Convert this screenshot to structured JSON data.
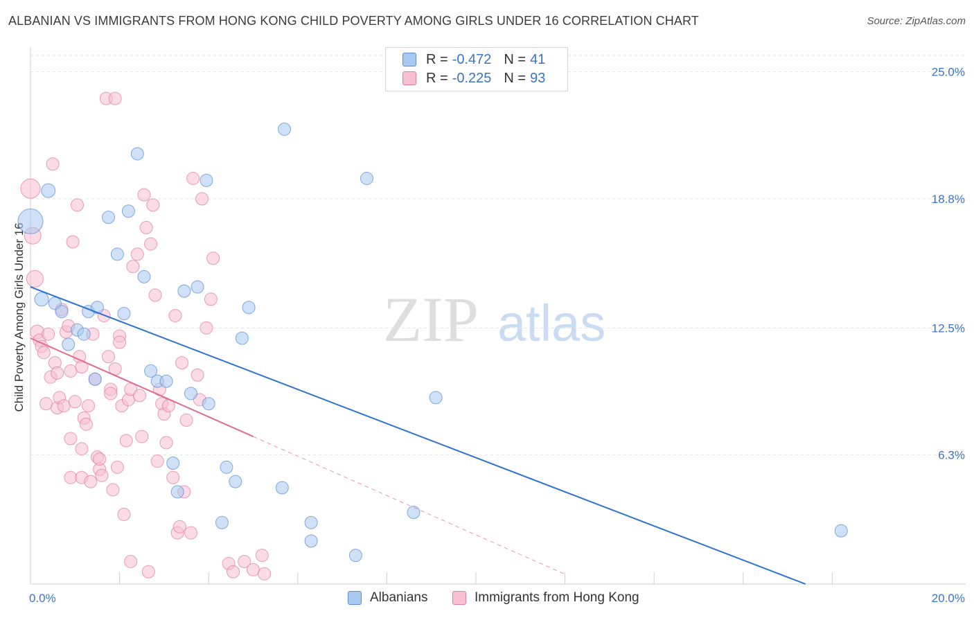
{
  "title": "ALBANIAN VS IMMIGRANTS FROM HONG KONG CHILD POVERTY AMONG GIRLS UNDER 16 CORRELATION CHART",
  "source": "Source: ZipAtlas.com",
  "watermark": {
    "zip": "ZIP",
    "atlas": "atlas"
  },
  "stats": [
    {
      "r_label": "R =",
      "r_value": "-0.472",
      "n_label": "N =",
      "n_value": "41",
      "color": "#a9c8f0",
      "border": "#5b8fd6"
    },
    {
      "r_label": "R =",
      "r_value": "-0.225",
      "n_label": "N =",
      "n_value": "93",
      "color": "#f7c0d2",
      "border": "#e27da0"
    }
  ],
  "legend": [
    "Albanians",
    "Immigrants from Hong Kong"
  ],
  "colors": {
    "albanian_fill": "#a9c8f0",
    "albanian_stroke": "#5b8fd6",
    "albanian_line": "#2f72d0",
    "hk_fill": "#f7c0d2",
    "hk_stroke": "#e27da0",
    "hk_line": "#e06a92",
    "tick_text": "#3a74c8",
    "grid": "#e3e3e3"
  },
  "chart_data": {
    "type": "scatter",
    "title": "ALBANIAN VS IMMIGRANTS FROM HONG KONG CHILD POVERTY AMONG GIRLS UNDER 16 CORRELATION CHART",
    "xlabel": "",
    "ylabel": "Child Poverty Among Girls Under 16",
    "xlim": [
      0,
      20
    ],
    "ylim": [
      0,
      25.8
    ],
    "x_tick_labels": [
      {
        "value": 0,
        "label": "0.0%"
      },
      {
        "value": 20,
        "label": "20.0%"
      }
    ],
    "y_ticks": [
      {
        "value": 6.3,
        "label": "6.3%"
      },
      {
        "value": 12.5,
        "label": "12.5%"
      },
      {
        "value": 18.8,
        "label": "18.8%"
      },
      {
        "value": 25.0,
        "label": "25.0%"
      }
    ],
    "x_minor_ticks": [
      2,
      4,
      6,
      8,
      10,
      12,
      14,
      16,
      18
    ],
    "grid": true,
    "legend_position": "bottom",
    "series": [
      {
        "name": "Albanians",
        "points": [
          [
            0.0,
            17.7,
            18
          ],
          [
            0.4,
            19.2,
            10
          ],
          [
            0.25,
            13.9,
            10
          ],
          [
            0.55,
            13.7,
            9
          ],
          [
            0.7,
            13.3,
            9
          ],
          [
            0.85,
            11.7,
            9
          ],
          [
            1.05,
            12.4,
            9
          ],
          [
            1.2,
            12.2,
            9
          ],
          [
            1.3,
            13.3,
            9
          ],
          [
            1.5,
            13.5,
            9
          ],
          [
            1.45,
            10.0,
            9
          ],
          [
            1.75,
            17.9,
            9
          ],
          [
            1.95,
            16.1,
            9
          ],
          [
            2.1,
            13.2,
            9
          ],
          [
            2.2,
            18.2,
            9
          ],
          [
            2.4,
            21.0,
            9
          ],
          [
            2.55,
            15.0,
            9
          ],
          [
            2.7,
            10.4,
            9
          ],
          [
            2.85,
            9.9,
            9
          ],
          [
            3.05,
            9.9,
            9
          ],
          [
            3.2,
            5.9,
            9
          ],
          [
            3.3,
            4.5,
            9
          ],
          [
            3.45,
            14.3,
            9
          ],
          [
            3.6,
            9.3,
            9
          ],
          [
            3.75,
            14.5,
            9
          ],
          [
            3.95,
            19.7,
            9
          ],
          [
            4.0,
            8.8,
            9
          ],
          [
            4.3,
            3.0,
            9
          ],
          [
            4.4,
            5.7,
            9
          ],
          [
            4.6,
            5.0,
            9
          ],
          [
            4.75,
            12.0,
            9
          ],
          [
            4.9,
            13.5,
            9
          ],
          [
            5.65,
            4.7,
            9
          ],
          [
            5.7,
            22.2,
            9
          ],
          [
            6.3,
            2.1,
            9
          ],
          [
            6.3,
            3.0,
            9
          ],
          [
            7.3,
            1.4,
            9
          ],
          [
            7.55,
            19.8,
            9
          ],
          [
            8.6,
            3.5,
            9
          ],
          [
            9.1,
            9.1,
            9
          ],
          [
            18.2,
            2.6,
            9
          ]
        ]
      },
      {
        "name": "Immigrants from Hong Kong",
        "points": [
          [
            0.0,
            19.3,
            14
          ],
          [
            0.05,
            17.0,
            12
          ],
          [
            0.1,
            14.9,
            12
          ],
          [
            0.15,
            12.3,
            10
          ],
          [
            0.2,
            11.9,
            9
          ],
          [
            0.25,
            11.6,
            9
          ],
          [
            0.3,
            11.3,
            9
          ],
          [
            0.35,
            8.8,
            9
          ],
          [
            0.4,
            12.2,
            9
          ],
          [
            0.45,
            10.1,
            9
          ],
          [
            0.5,
            20.5,
            9
          ],
          [
            0.55,
            10.8,
            9
          ],
          [
            0.6,
            10.3,
            9
          ],
          [
            0.6,
            8.6,
            9
          ],
          [
            0.65,
            9.1,
            9
          ],
          [
            0.7,
            13.4,
            9
          ],
          [
            0.75,
            8.7,
            9
          ],
          [
            0.8,
            12.3,
            9
          ],
          [
            0.85,
            12.6,
            9
          ],
          [
            0.9,
            10.4,
            9
          ],
          [
            0.9,
            7.1,
            9
          ],
          [
            0.9,
            5.2,
            9
          ],
          [
            0.95,
            16.7,
            9
          ],
          [
            1.0,
            8.9,
            9
          ],
          [
            1.05,
            18.5,
            9
          ],
          [
            1.1,
            11.1,
            9
          ],
          [
            1.15,
            10.6,
            9
          ],
          [
            1.15,
            6.6,
            9
          ],
          [
            1.15,
            5.2,
            9
          ],
          [
            1.2,
            8.1,
            9
          ],
          [
            1.25,
            7.8,
            9
          ],
          [
            1.3,
            8.7,
            9
          ],
          [
            1.35,
            5.0,
            9
          ],
          [
            1.4,
            12.2,
            9
          ],
          [
            1.45,
            10.0,
            9
          ],
          [
            1.5,
            6.2,
            9
          ],
          [
            1.55,
            5.6,
            9
          ],
          [
            1.55,
            6.1,
            9
          ],
          [
            1.6,
            5.3,
            9
          ],
          [
            1.65,
            13.1,
            9
          ],
          [
            1.7,
            23.7,
            9
          ],
          [
            1.75,
            11.1,
            9
          ],
          [
            1.8,
            9.5,
            9
          ],
          [
            1.8,
            9.3,
            9
          ],
          [
            1.85,
            4.6,
            9
          ],
          [
            1.9,
            10.5,
            9
          ],
          [
            1.9,
            23.7,
            9
          ],
          [
            1.95,
            5.7,
            9
          ],
          [
            2.0,
            12.1,
            9
          ],
          [
            2.0,
            11.8,
            9
          ],
          [
            2.05,
            8.7,
            9
          ],
          [
            2.1,
            3.4,
            9
          ],
          [
            2.15,
            7.0,
            9
          ],
          [
            2.2,
            9.0,
            9
          ],
          [
            2.25,
            9.5,
            9
          ],
          [
            2.25,
            1.1,
            9
          ],
          [
            2.3,
            15.5,
            9
          ],
          [
            2.4,
            16.1,
            9
          ],
          [
            2.45,
            9.2,
            9
          ],
          [
            2.5,
            7.2,
            9
          ],
          [
            2.55,
            19.0,
            9
          ],
          [
            2.6,
            17.4,
            9
          ],
          [
            2.65,
            0.6,
            9
          ],
          [
            2.7,
            16.6,
            9
          ],
          [
            2.75,
            18.5,
            9
          ],
          [
            2.8,
            14.1,
            9
          ],
          [
            2.85,
            6.0,
            9
          ],
          [
            2.9,
            9.5,
            9
          ],
          [
            2.95,
            8.8,
            9
          ],
          [
            3.0,
            8.3,
            9
          ],
          [
            3.05,
            6.9,
            9
          ],
          [
            3.1,
            8.7,
            9
          ],
          [
            3.2,
            5.2,
            9
          ],
          [
            3.25,
            13.1,
            9
          ],
          [
            3.3,
            2.5,
            9
          ],
          [
            3.35,
            2.8,
            9
          ],
          [
            3.4,
            10.8,
            9
          ],
          [
            3.45,
            4.5,
            9
          ],
          [
            3.5,
            8.0,
            9
          ],
          [
            3.6,
            2.5,
            9
          ],
          [
            3.65,
            19.8,
            9
          ],
          [
            3.75,
            10.2,
            9
          ],
          [
            3.8,
            9.0,
            9
          ],
          [
            3.85,
            18.8,
            9
          ],
          [
            3.95,
            12.5,
            9
          ],
          [
            4.05,
            13.9,
            9
          ],
          [
            4.1,
            15.9,
            9
          ],
          [
            4.45,
            1.0,
            9
          ],
          [
            4.55,
            0.6,
            9
          ],
          [
            4.8,
            1.1,
            9
          ],
          [
            5.0,
            0.7,
            9
          ],
          [
            5.2,
            1.4,
            9
          ],
          [
            5.25,
            0.5,
            9
          ]
        ]
      }
    ],
    "trend_lines": [
      {
        "series": "Albanians",
        "x0": 0,
        "y0": 14.5,
        "x1": 17.4,
        "y1": 0
      },
      {
        "series": "Immigrants from Hong Kong",
        "x0": 0,
        "y0": 12.0,
        "x1": 5.0,
        "y1": 7.2,
        "dashed_to_x": 12.0
      }
    ]
  }
}
